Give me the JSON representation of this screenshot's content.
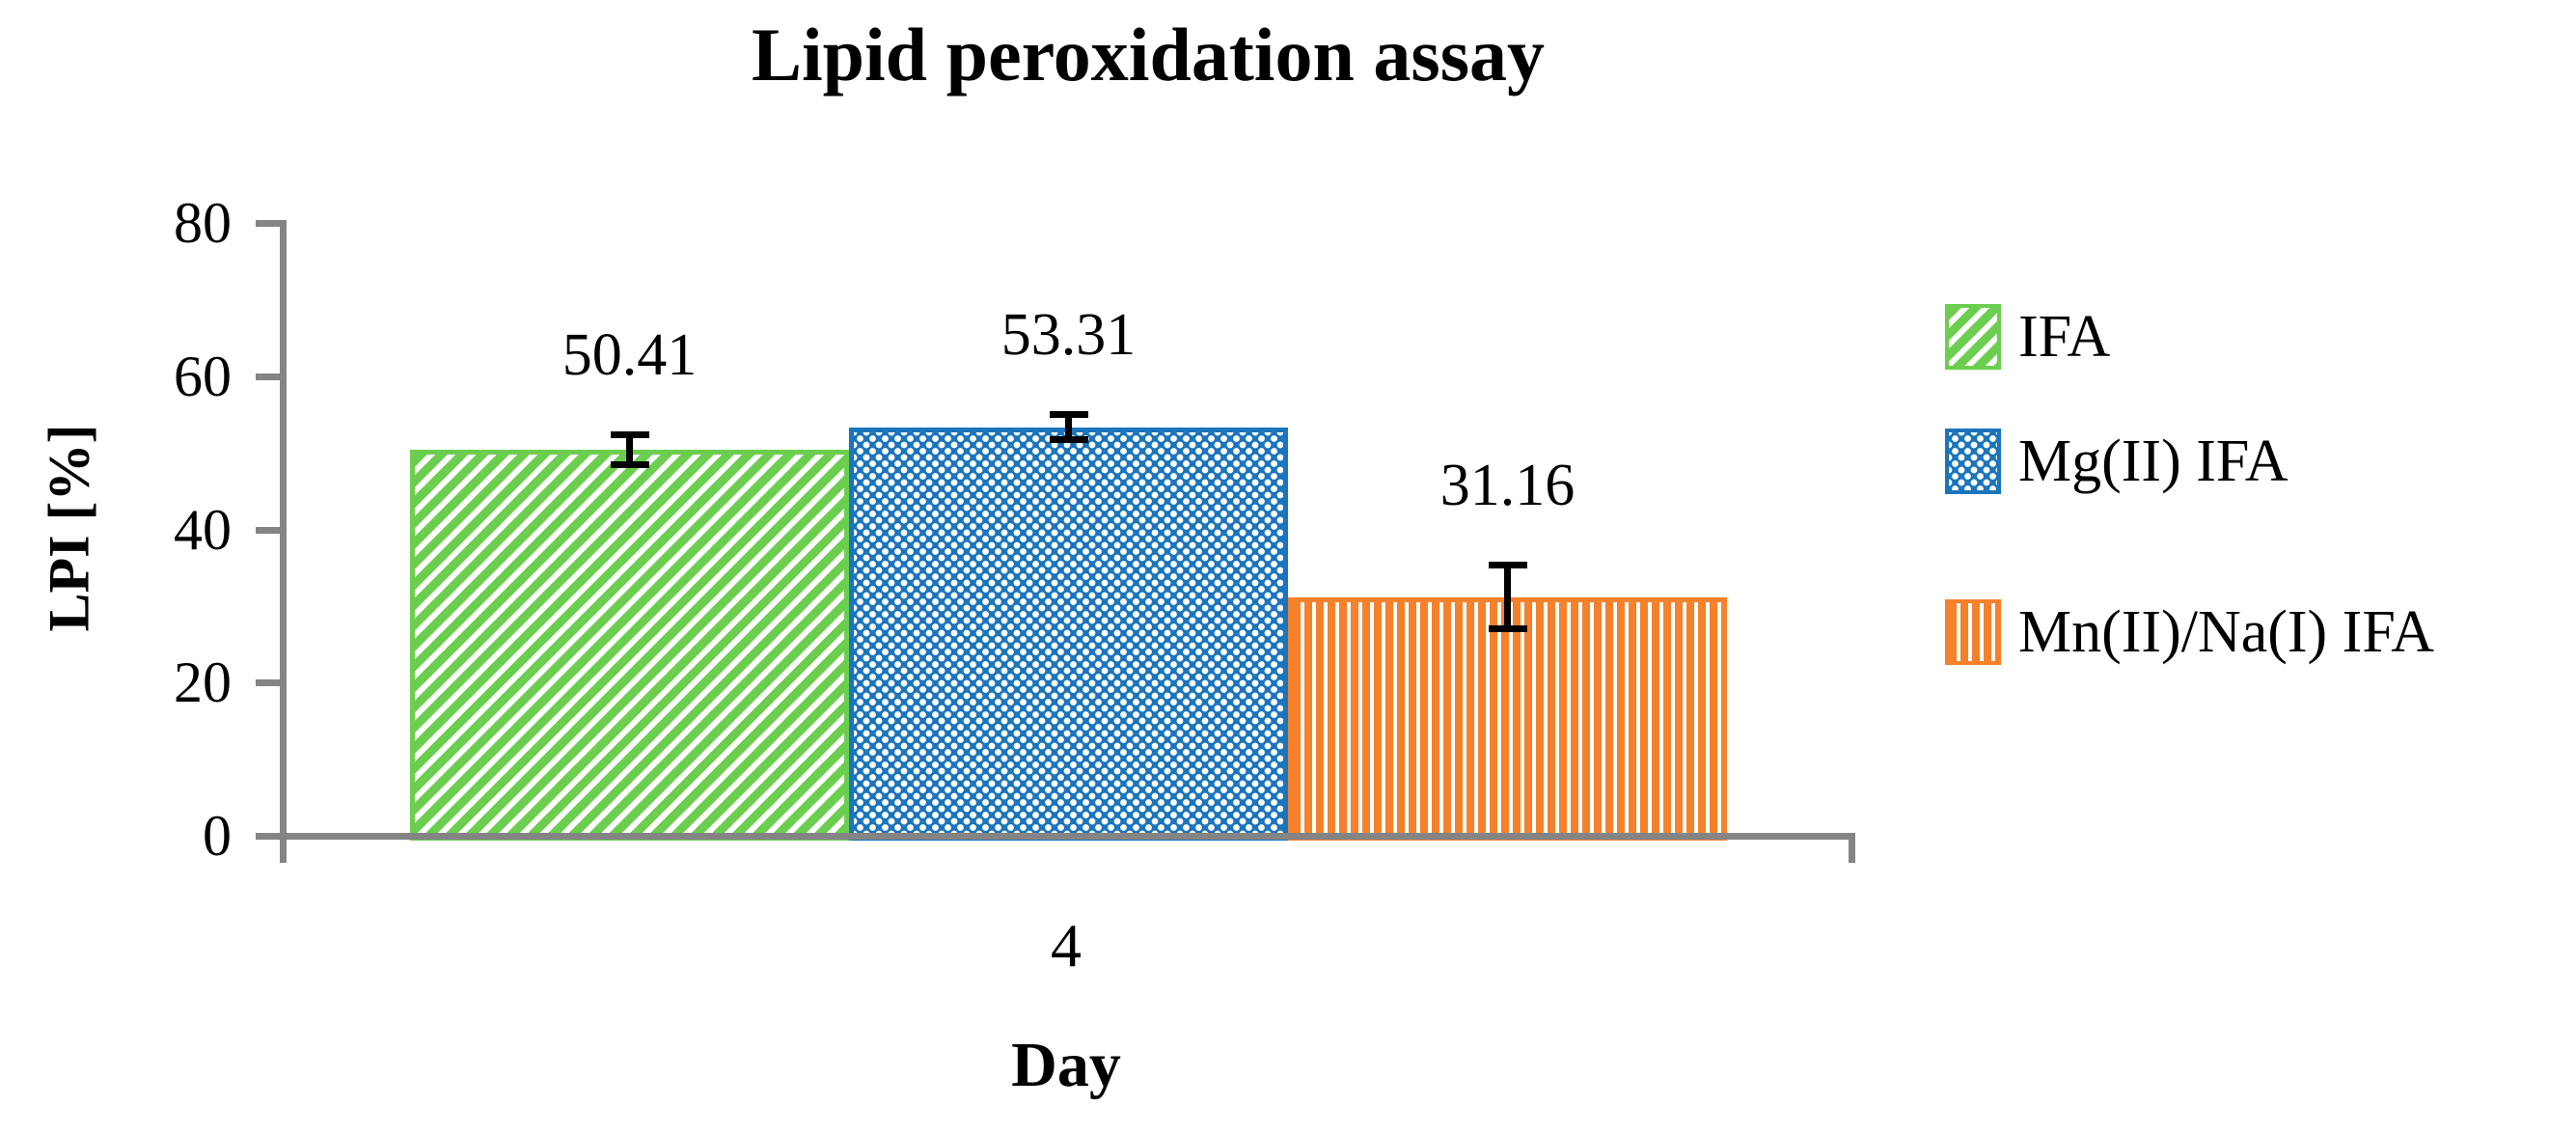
{
  "title": "Lipid peroxidation assay",
  "axis_color": "#848484",
  "text_color": "#000000",
  "x_axis": {
    "label": "Day",
    "category": "4"
  },
  "y_axis": {
    "label": "LPI [%]",
    "ticks": [
      "0",
      "20",
      "40",
      "60",
      "80"
    ],
    "min": 0,
    "max": 80
  },
  "chart_data": {
    "type": "bar",
    "title": "Lipid peroxidation assay",
    "xlabel": "Day",
    "ylabel": "LPI [%]",
    "categories": [
      "4"
    ],
    "ylim": [
      0,
      80
    ],
    "y_tick_step": 20,
    "grid": false,
    "legend_position": "right",
    "series": [
      {
        "name": "IFA",
        "values": [
          50.41
        ],
        "error": [
          1.5
        ],
        "color": "#6CCE4E",
        "pattern": "diagonal-stripes",
        "data_label": "50.41"
      },
      {
        "name": "Mg(II) IFA",
        "values": [
          53.31
        ],
        "error": [
          1.2
        ],
        "color": "#1B75BC",
        "pattern": "checker-dots",
        "data_label": "53.31"
      },
      {
        "name": "Mn(II)/Na(I) IFA",
        "values": [
          31.16
        ],
        "error": [
          3.7
        ],
        "color": "#F5812B",
        "pattern": "vertical-stripes",
        "data_label": "31.16"
      }
    ]
  }
}
